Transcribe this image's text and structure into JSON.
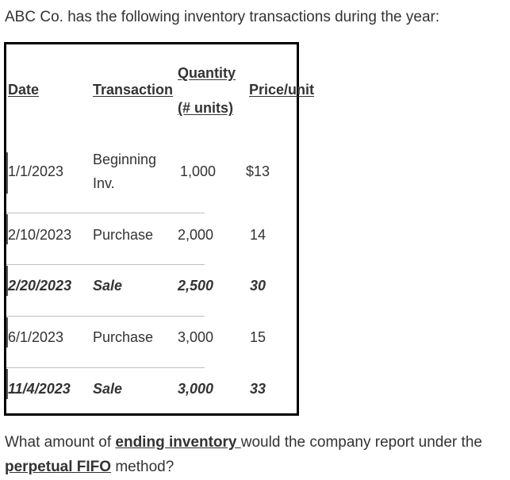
{
  "intro": "ABC Co. has the following inventory transactions during the year:",
  "table": {
    "headers": {
      "date": "Date",
      "transaction": "Transaction",
      "quantity_line1": "Quantity",
      "quantity_line2": "(# units)",
      "price": "Price/unit"
    },
    "rows": [
      {
        "date": "1/1/2023",
        "transaction_line1": "Beginning",
        "transaction_line2": "Inv.",
        "quantity": "1,000",
        "price": "$13"
      },
      {
        "date": "2/10/2023",
        "transaction": "Purchase",
        "quantity": "2,000",
        "price": "14"
      },
      {
        "date": "2/20/2023",
        "transaction": "Sale",
        "quantity": "2,500",
        "price": "30"
      },
      {
        "date": "6/1/2023",
        "transaction": "Purchase",
        "quantity": "3,000",
        "price": "15"
      },
      {
        "date": "11/4/2023",
        "transaction": "Sale",
        "quantity": "3,000",
        "price": "33"
      }
    ]
  },
  "question": {
    "part1": "What amount of ",
    "emph1": "ending inventory ",
    "part2": "would the company report under the ",
    "emph2": "perpetual FIFO",
    "part3": " method?"
  }
}
